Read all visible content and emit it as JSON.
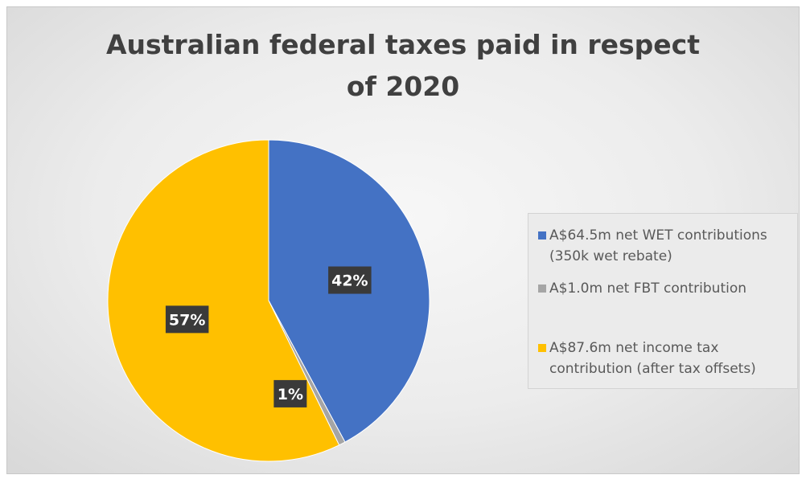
{
  "chart_data": {
    "type": "pie",
    "title": "Australian federal taxes paid in respect of 2020",
    "title_lines": [
      "Australian federal taxes paid in respect",
      "of 2020"
    ],
    "slices": [
      {
        "label": "A$64.5m net WET contributions (350k wet rebate)",
        "legend_lines": [
          "A$64.5m net WET contributions",
          "(350k wet rebate)"
        ],
        "value": 64.5,
        "percent_label": "42%",
        "color": "#4472c4"
      },
      {
        "label": "A$1.0m net FBT contribution",
        "legend_lines": [
          "A$1.0m net FBT contribution"
        ],
        "value": 1.0,
        "percent_label": "1%",
        "color": "#a5a5a5"
      },
      {
        "label": "A$87.6m net income tax contribution (after tax offsets)",
        "legend_lines": [
          "A$87.6m net income tax",
          "contribution (after tax offsets)"
        ],
        "value": 87.6,
        "percent_label": "57%",
        "color": "#ffc000"
      }
    ],
    "legend_position": "right",
    "data_label_style": "dark box, white bold text"
  }
}
